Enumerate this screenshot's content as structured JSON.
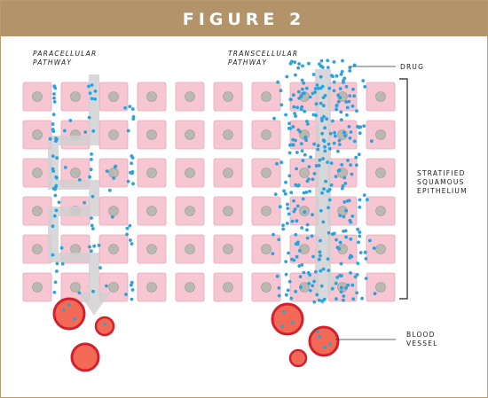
{
  "figure": {
    "title": "FIGURE 2"
  },
  "labels": {
    "paracellular_line1": "PARACELLULAR",
    "paracellular_line2": "PATHWAY",
    "transcellular_line1": "TRANSCELLULAR",
    "transcellular_line2": "PATHWAY",
    "drug": "DRUG",
    "epithelium_line1": "STRATIFIED",
    "epithelium_line2": "SQUAMOUS",
    "epithelium_line3": "EPITHELIUM",
    "vessel_line1": "BLOOD",
    "vessel_line2": "VESSEL"
  },
  "colors": {
    "header": "#b3946a",
    "cell_fill": "#f6c6d2",
    "cell_stroke": "#e9a9b9",
    "nucleus": "#b9b9b2",
    "drug_particle": "#2aa2de",
    "arrow": "#cfd0d2",
    "blood_vessel": "#f26a55",
    "blood_vessel_stroke": "#d3202e"
  },
  "grid": {
    "rows": 6,
    "columns": 10
  }
}
